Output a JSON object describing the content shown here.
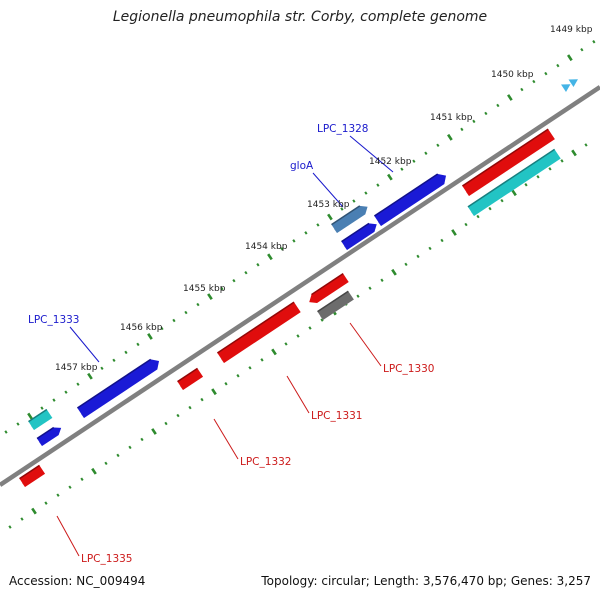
{
  "title": "Legionella pneumophila str. Corby, complete genome",
  "footer": {
    "accession": "Accession: NC_009494",
    "summary": "Topology: circular; Length: 3,576,470 bp; Genes: 3,257"
  },
  "colors": {
    "backbone": "#808080",
    "tick": "#2e8b2e",
    "forward_label": "#1a1acc",
    "reverse_label": "#cc1a1a",
    "blue": "#1a1ad6",
    "red": "#e00d0d",
    "cyan": "#22c4c4",
    "steelblue": "#4a7fb3",
    "gray": "#6c6c6c",
    "lightblue": "#44b4e6"
  },
  "ruler": [
    {
      "kbp": 1449,
      "label": "1449 kbp"
    },
    {
      "kbp": 1450,
      "label": "1450 kbp"
    },
    {
      "kbp": 1451,
      "label": "1451 kbp"
    },
    {
      "kbp": 1452,
      "label": "1452 kbp"
    },
    {
      "kbp": 1453,
      "label": "1453 kbp"
    },
    {
      "kbp": 1454,
      "label": "1454 kbp"
    },
    {
      "kbp": 1455,
      "label": "1455 kbp"
    },
    {
      "kbp": 1456,
      "label": "1456 kbp"
    },
    {
      "kbp": 1457,
      "label": "1457 kbp"
    }
  ],
  "gene_labels": [
    {
      "text": "LPC_1328",
      "strand": "forward"
    },
    {
      "text": "gloA",
      "strand": "forward"
    },
    {
      "text": "LPC_1333",
      "strand": "forward"
    },
    {
      "text": "LPC_1330",
      "strand": "reverse"
    },
    {
      "text": "LPC_1331",
      "strand": "reverse"
    },
    {
      "text": "LPC_1332",
      "strand": "reverse"
    },
    {
      "text": "LPC_1335",
      "strand": "reverse"
    }
  ],
  "features": [
    {
      "id": "f1",
      "color": "lightblue"
    },
    {
      "id": "f2",
      "color": "red"
    },
    {
      "id": "f3",
      "color": "cyan"
    },
    {
      "id": "f4",
      "color": "blue"
    },
    {
      "id": "f5",
      "color": "steelblue"
    },
    {
      "id": "f6",
      "color": "blue"
    },
    {
      "id": "f7",
      "color": "red"
    },
    {
      "id": "f8",
      "color": "gray"
    },
    {
      "id": "f9",
      "color": "red"
    },
    {
      "id": "f10",
      "color": "red"
    },
    {
      "id": "f11",
      "color": "blue"
    },
    {
      "id": "f12",
      "color": "cyan"
    },
    {
      "id": "f13",
      "color": "blue"
    },
    {
      "id": "f14",
      "color": "red"
    }
  ]
}
